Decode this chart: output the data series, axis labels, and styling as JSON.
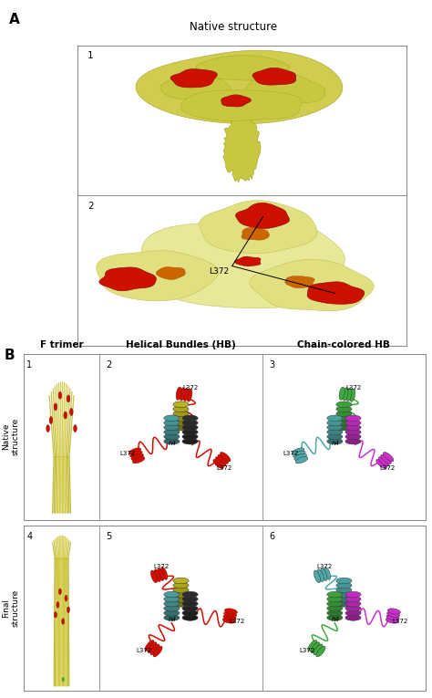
{
  "fig_width": 4.74,
  "fig_height": 7.65,
  "dpi": 100,
  "bg_color": "#ffffff",
  "label_A": "A",
  "label_B": "B",
  "panel_A_title": "Native structure",
  "panel_A2_annotation": "L372",
  "panel_B_col_labels": [
    "F trimer",
    "Helical Bundles (HB)",
    "Chain-colored HB"
  ],
  "yellow_mol": "#c8c020",
  "yellow_light": "#e8e890",
  "yellow_surf": "#d4cc50",
  "red_color": "#cc1100",
  "dark_red": "#880000",
  "orange_color": "#cc6600",
  "teal_color": "#50a8a8",
  "teal_dark": "#308888",
  "green_color": "#40aa40",
  "green_dark": "#208820",
  "magenta_color": "#cc30cc",
  "magenta_dark": "#992299",
  "gray_dark": "#333333",
  "gray_mid": "#666666",
  "black": "#000000",
  "white": "#ffffff",
  "olive_yellow": "#b8b018",
  "pale_yellow": "#f0f0a0"
}
